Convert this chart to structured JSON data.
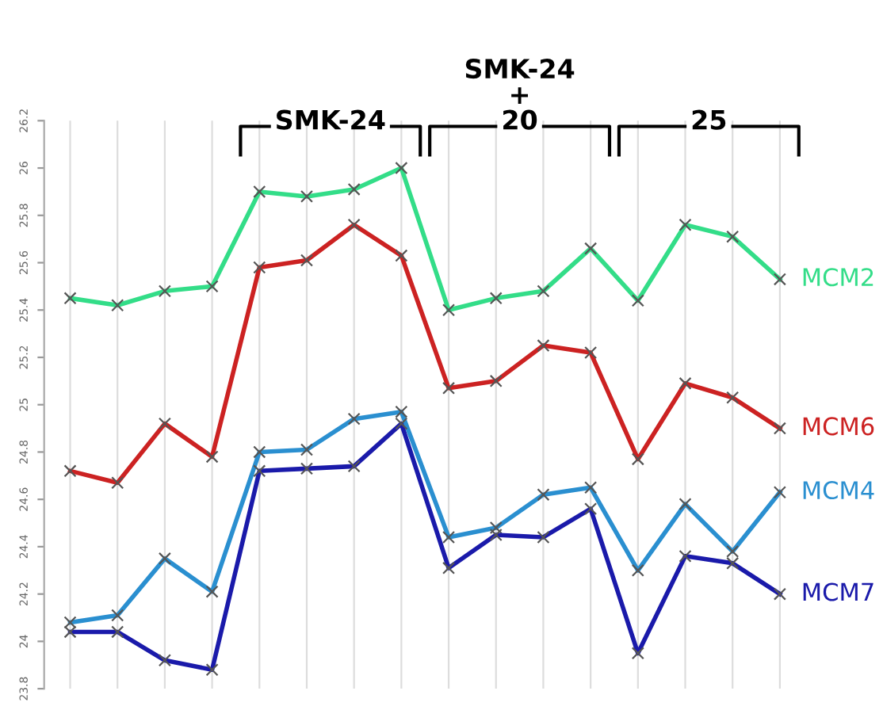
{
  "chart_data": {
    "type": "line",
    "categories": [
      null,
      null,
      null,
      null,
      null,
      null,
      null,
      null,
      null,
      null,
      null,
      null,
      null,
      null,
      null,
      null
    ],
    "series": [
      {
        "name": "MCM2",
        "color": "#33dd88",
        "values": [
          25.45,
          25.42,
          25.48,
          25.5,
          25.9,
          25.88,
          25.91,
          26.0,
          25.4,
          25.45,
          25.48,
          25.66,
          25.44,
          25.76,
          25.71,
          25.53
        ]
      },
      {
        "name": "MCM6",
        "color": "#cc2222",
        "values": [
          24.72,
          24.67,
          24.92,
          24.78,
          25.58,
          25.61,
          25.76,
          25.63,
          25.07,
          25.1,
          25.25,
          25.22,
          24.77,
          25.09,
          25.03,
          24.9
        ]
      },
      {
        "name": "MCM4",
        "color": "#2a8fd0",
        "values": [
          24.08,
          24.11,
          24.35,
          24.21,
          24.8,
          24.81,
          24.94,
          24.97,
          24.44,
          24.48,
          24.62,
          24.65,
          24.3,
          24.58,
          24.38,
          24.63
        ]
      },
      {
        "name": "MCM7",
        "color": "#1a1aaa",
        "values": [
          24.04,
          24.04,
          23.92,
          23.88,
          24.72,
          24.73,
          24.74,
          24.92,
          24.31,
          24.45,
          24.44,
          24.56,
          23.95,
          24.36,
          24.33,
          24.2
        ]
      }
    ],
    "ylim": [
      23.8,
      26.2
    ],
    "yticks": [
      23.8,
      24,
      24.2,
      24.4,
      24.6,
      24.8,
      25,
      25.2,
      25.4,
      25.6,
      25.8,
      26,
      26.2
    ],
    "grid": "x",
    "marker": "cross",
    "line_style": "solid",
    "tick_labels": "y",
    "legend": false,
    "annotations": [
      "SMK-24",
      "SMK-24\n+\n20",
      "25"
    ]
  }
}
